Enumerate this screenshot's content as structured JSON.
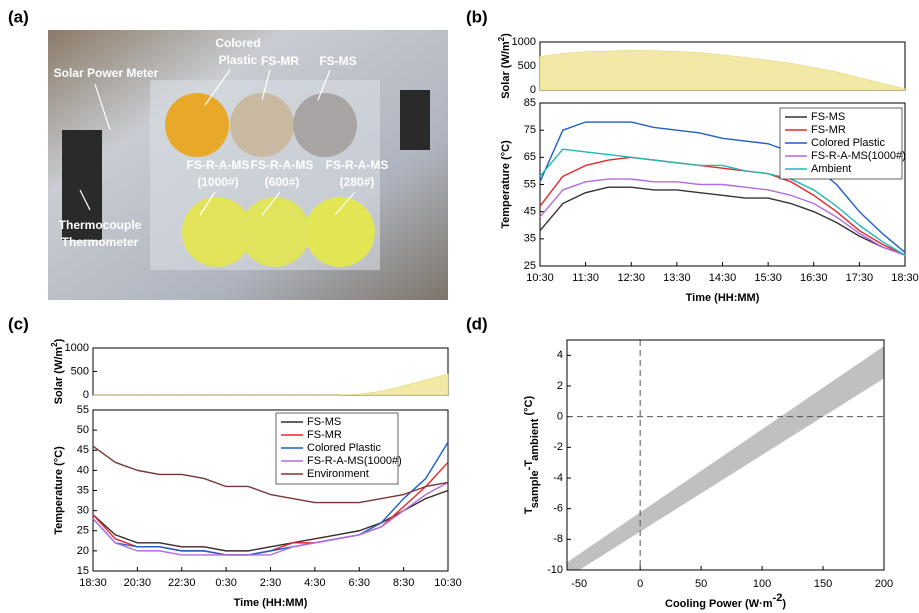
{
  "panel_labels": [
    "(a)",
    "(b)",
    "(c)",
    "(d)"
  ],
  "photo": {
    "labels": [
      "Solar Power Meter",
      "Colored",
      "Plastic",
      "FS-MR",
      "FS-MS",
      "FS-R-A-MS",
      "(1000#)",
      "FS-R-A-MS",
      "(600#)",
      "FS-R-A-MS",
      "(280#)",
      "Thermocouple",
      "Thermometer"
    ]
  },
  "chart_data": [
    {
      "type": "line",
      "x": [
        10.5,
        11,
        11.5,
        12,
        12.5,
        13,
        13.5,
        14,
        14.5,
        15,
        15.5,
        16,
        16.5,
        17,
        17.5,
        18,
        18.5
      ],
      "xlim": [
        10.5,
        18.5
      ],
      "xticks": [
        {
          "value": 10.5,
          "label": "10:30"
        },
        {
          "value": 11.5,
          "label": "11:30"
        },
        {
          "value": 12.5,
          "label": "12:30"
        },
        {
          "value": 13.5,
          "label": "13:30"
        },
        {
          "value": 14.5,
          "label": "14:30"
        },
        {
          "value": 15.5,
          "label": "15:30"
        },
        {
          "value": 16.5,
          "label": "16:30"
        },
        {
          "value": 17.5,
          "label": "17:30"
        },
        {
          "value": 18.5,
          "label": "18:30"
        }
      ],
      "xlabel": "Time (HH:MM)",
      "ylabel": "Temperature (°C)",
      "ylim": [
        25,
        85
      ],
      "yticks": [
        25,
        35,
        45,
        55,
        65,
        75,
        85
      ],
      "solar": {
        "ylabel_parts": [
          "Solar (W/m",
          "2",
          ")"
        ],
        "color": "#f2e9a6",
        "ylim": [
          0,
          1000
        ],
        "yticks": [
          0,
          500,
          1000
        ],
        "values": [
          700,
          760,
          800,
          810,
          830,
          820,
          800,
          780,
          730,
          680,
          620,
          560,
          470,
          380,
          260,
          140,
          30
        ]
      },
      "series": [
        {
          "name": "FS-MS",
          "color": "#333333",
          "values": [
            38,
            48,
            52,
            54,
            54,
            53,
            53,
            52,
            51,
            50,
            50,
            48,
            45,
            41,
            36,
            32,
            29
          ]
        },
        {
          "name": "FS-MR",
          "color": "#e8262b",
          "values": [
            47,
            58,
            62,
            64,
            65,
            64,
            63,
            62,
            61,
            60,
            59,
            56,
            51,
            45,
            38,
            33,
            29
          ]
        },
        {
          "name": "Colored Plastic",
          "color": "#1f5fc8",
          "values": [
            56,
            75,
            78,
            78,
            78,
            76,
            75,
            74,
            72,
            71,
            70,
            67,
            62,
            55,
            45,
            37,
            30
          ]
        },
        {
          "name": "FS-R-A-MS(1000#)",
          "color": "#b46be0",
          "values": [
            43,
            53,
            56,
            57,
            57,
            56,
            56,
            55,
            55,
            54,
            53,
            51,
            48,
            43,
            37,
            32,
            29
          ]
        },
        {
          "name": "Ambient",
          "color": "#1fb8b8",
          "values": [
            58,
            68,
            67,
            66,
            65,
            64,
            63,
            62,
            62,
            60,
            59,
            57,
            53,
            47,
            40,
            34,
            29
          ]
        }
      ]
    },
    {
      "type": "line",
      "x": [
        18.5,
        19.5,
        20.5,
        21.5,
        22.5,
        23.5,
        24.5,
        25.5,
        26.5,
        27.5,
        28.5,
        29.5,
        30.5,
        31.5,
        32.5,
        33.5,
        34.5
      ],
      "xlim": [
        18.5,
        34.5
      ],
      "xticks": [
        {
          "value": 18.5,
          "label": "18:30"
        },
        {
          "value": 20.5,
          "label": "20:30"
        },
        {
          "value": 22.5,
          "label": "22:30"
        },
        {
          "value": 24.5,
          "label": "0:30"
        },
        {
          "value": 26.5,
          "label": "2:30"
        },
        {
          "value": 28.5,
          "label": "4:30"
        },
        {
          "value": 30.5,
          "label": "6:30"
        },
        {
          "value": 32.5,
          "label": "8:30"
        },
        {
          "value": 34.5,
          "label": "10:30"
        }
      ],
      "xlabel": "Time (HH:MM)",
      "ylabel": "Temperature (°C)",
      "ylim": [
        15,
        55
      ],
      "yticks": [
        15,
        20,
        25,
        30,
        35,
        40,
        45,
        50,
        55
      ],
      "solar": {
        "ylabel_parts": [
          "Solar (W/m",
          "2",
          ")"
        ],
        "color": "#f2e9a6",
        "ylim": [
          0,
          1000
        ],
        "yticks": [
          0,
          500,
          1000
        ],
        "values": [
          0,
          0,
          0,
          0,
          0,
          0,
          0,
          0,
          0,
          0,
          0,
          0,
          20,
          80,
          200,
          320,
          450
        ]
      },
      "series": [
        {
          "name": "FS-MS",
          "color": "#3a2a2a",
          "values": [
            29,
            24,
            22,
            22,
            21,
            21,
            20,
            20,
            21,
            22,
            23,
            24,
            25,
            27,
            30,
            33,
            35
          ]
        },
        {
          "name": "FS-MR",
          "color": "#e8262b",
          "values": [
            29,
            23,
            21,
            21,
            20,
            20,
            19,
            19,
            20,
            22,
            22,
            23,
            24,
            26,
            31,
            36,
            42
          ]
        },
        {
          "name": "Colored Plastic",
          "color": "#1f5fc8",
          "values": [
            28,
            22,
            21,
            21,
            20,
            20,
            19,
            19,
            20,
            21,
            22,
            23,
            24,
            27,
            33,
            38,
            47
          ]
        },
        {
          "name": "FS-R-A-MS(1000#)",
          "color": "#b46be0",
          "values": [
            28,
            22,
            20,
            20,
            19,
            19,
            19,
            19,
            19,
            21,
            22,
            23,
            24,
            26,
            30,
            34,
            37
          ]
        },
        {
          "name": "Environment",
          "color": "#7a3535",
          "values": [
            46,
            42,
            40,
            39,
            39,
            38,
            36,
            36,
            34,
            33,
            32,
            32,
            32,
            33,
            34,
            36,
            37
          ]
        }
      ]
    },
    {
      "type": "band",
      "x": [
        -60,
        200
      ],
      "band_lower": [
        -10.5,
        2.5
      ],
      "band_upper": [
        -9.5,
        4.6
      ],
      "color": "#c0c0c0",
      "ref_x": 0,
      "ref_y": 0,
      "xlim": [
        -60,
        200
      ],
      "xticks": [
        -50,
        0,
        50,
        100,
        150,
        200
      ],
      "ylim": [
        -10,
        5
      ],
      "yticks": [
        -10,
        -8,
        -6,
        -4,
        -2,
        0,
        2,
        4
      ],
      "xlabel_parts": [
        "Cooling Power (W·m",
        "-2",
        ")"
      ],
      "ylabel_parts": [
        "T",
        "sample",
        "-T",
        "ambient",
        " (°C)"
      ]
    }
  ]
}
